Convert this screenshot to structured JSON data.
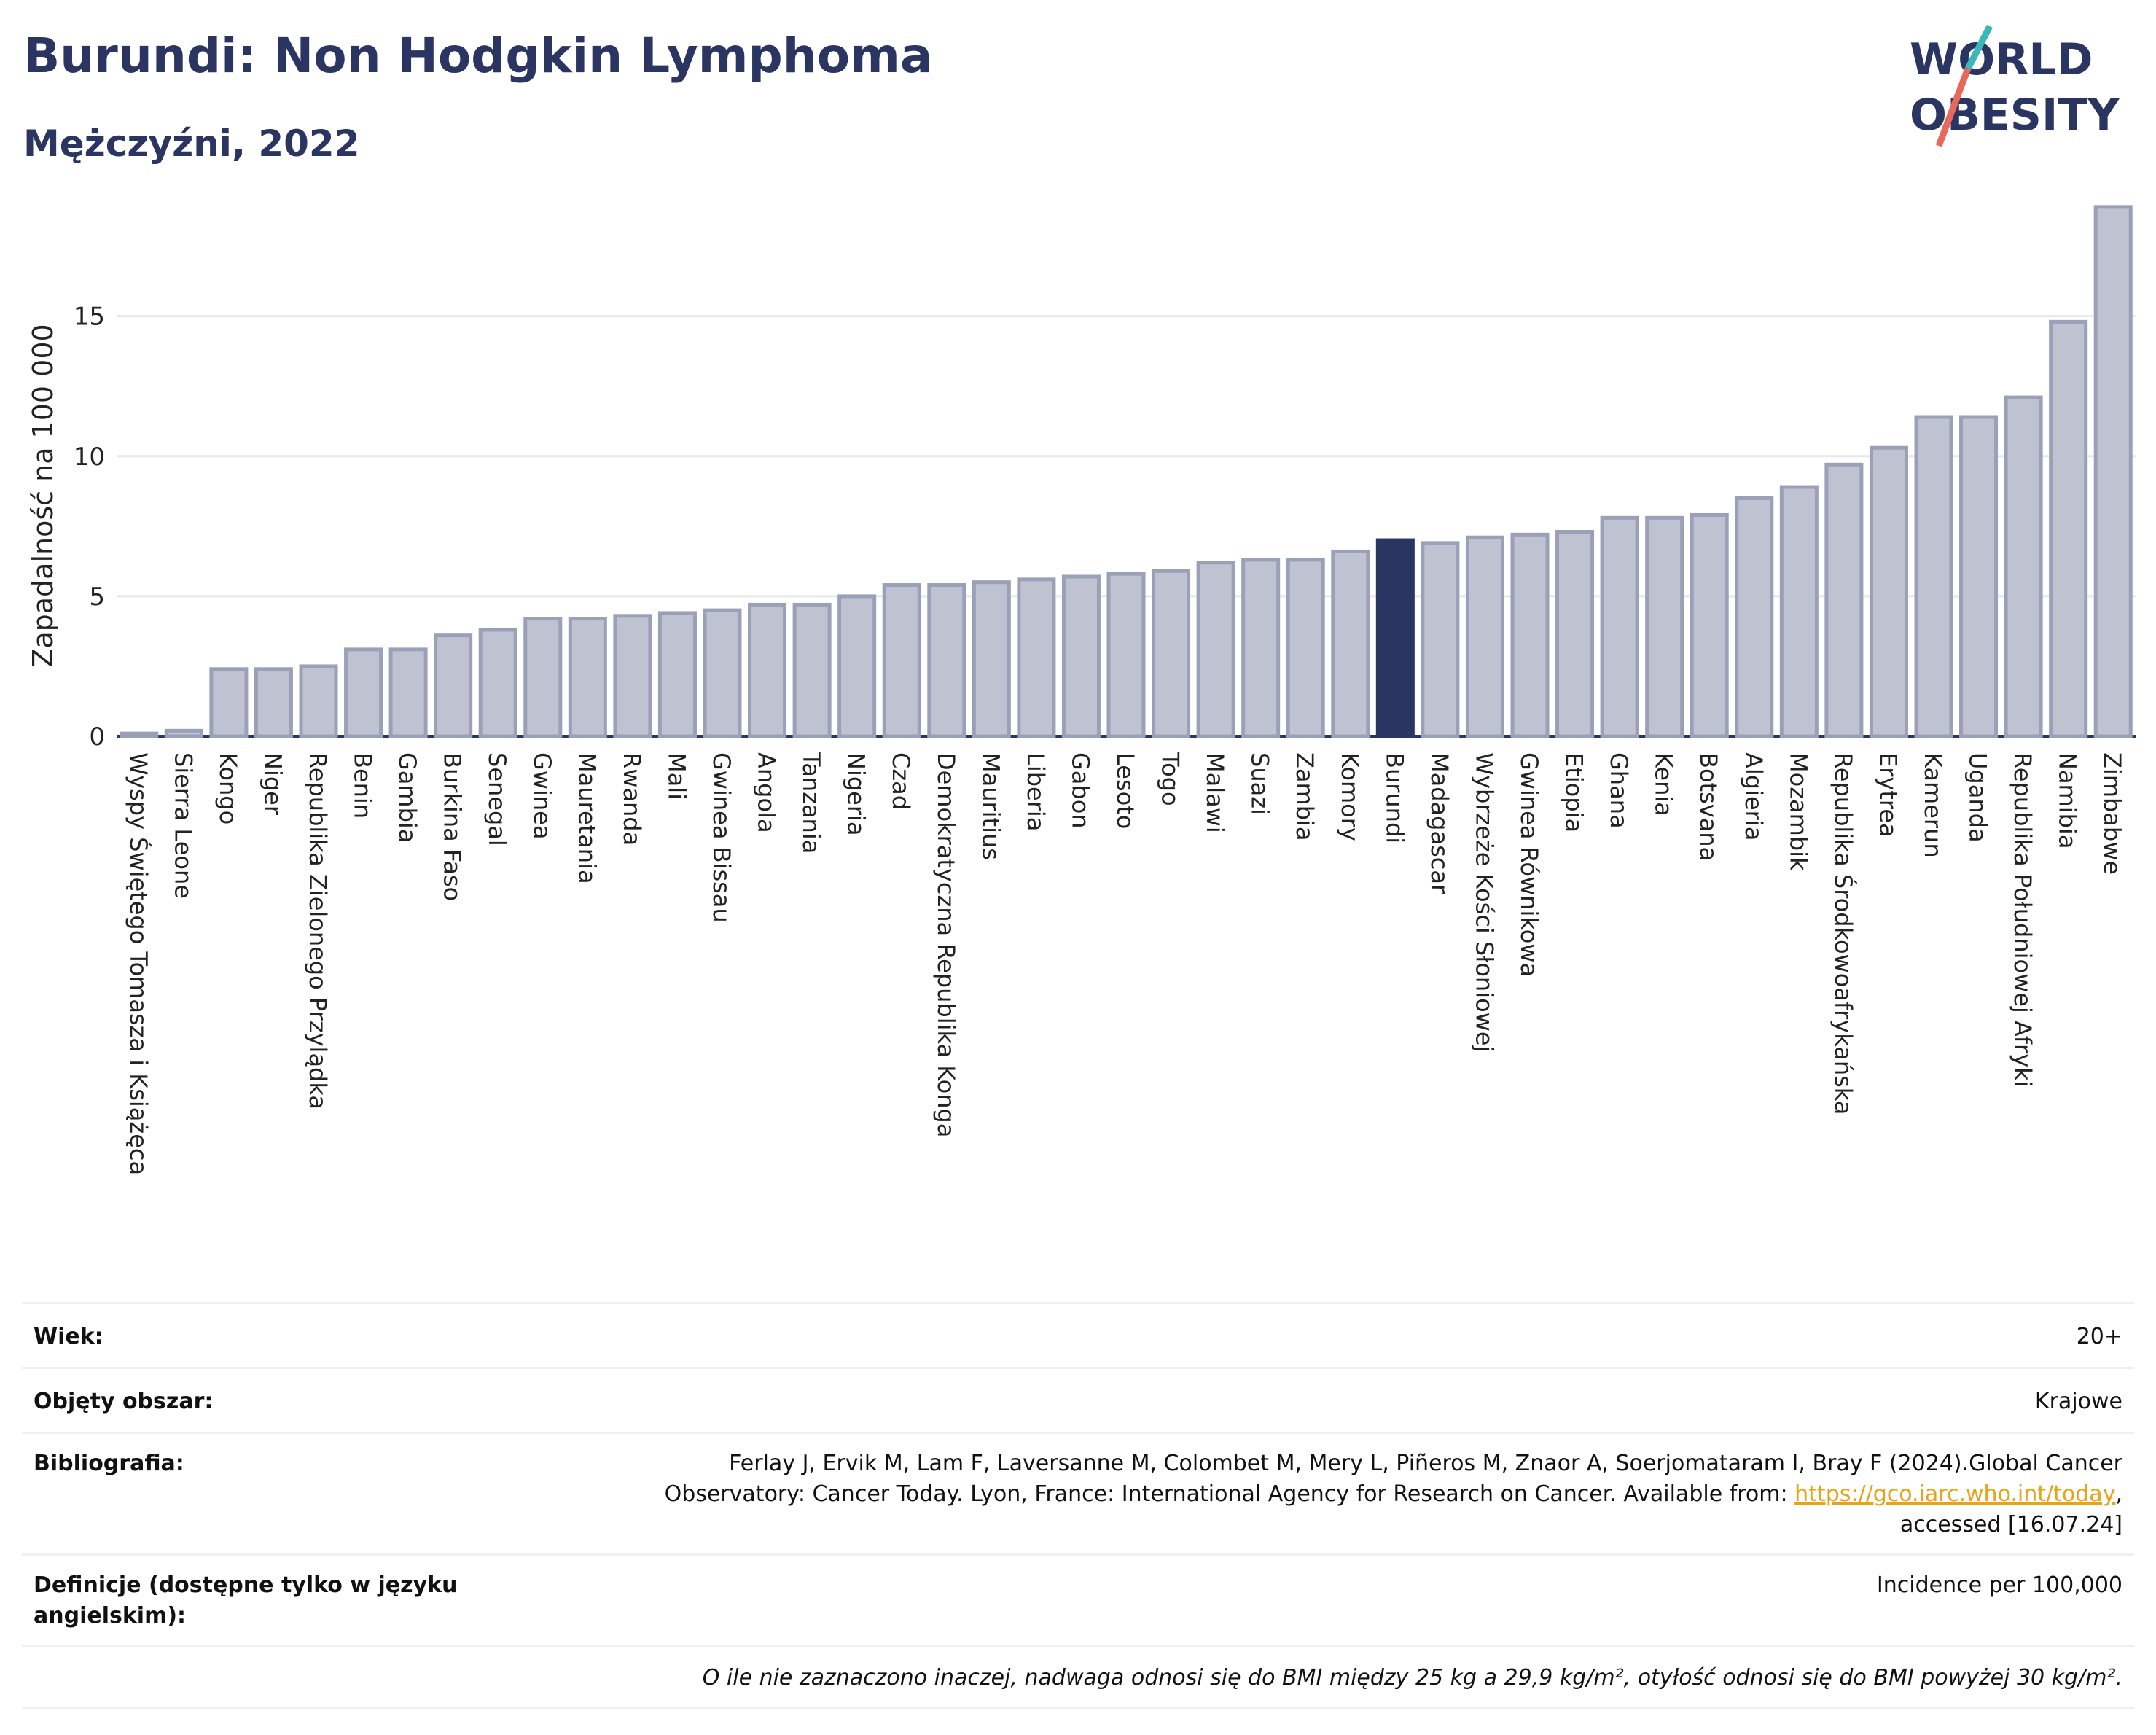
{
  "header": {
    "title": "Burundi: Non Hodgkin Lymphoma",
    "subtitle": "Mężczyźni, 2022"
  },
  "logo": {
    "line1": "WORLD",
    "line2": "OBESITY"
  },
  "colors": {
    "bar": "#bfc3d1",
    "bar_edge": "#9aa0b8",
    "highlight": "#2b3562",
    "grid": "#e6e8ee",
    "text": "#2b3562",
    "link": "#e8a317",
    "logo_teal": "#3ab7b9",
    "logo_red": "#e8685c"
  },
  "chart_data": {
    "type": "bar",
    "title": "",
    "ylabel": "Zapadalność na 100 000",
    "ylim": [
      0,
      19
    ],
    "yticks": [
      0,
      5,
      10,
      15
    ],
    "grid": true,
    "highlight": "Burundi",
    "categories": [
      "Wyspy Świętego Tomasza i Książęca",
      "Sierra Leone",
      "Kongo",
      "Niger",
      "Republika Zielonego Przylądka",
      "Benin",
      "Gambia",
      "Burkina Faso",
      "Senegal",
      "Gwinea",
      "Mauretania",
      "Rwanda",
      "Mali",
      "Gwinea Bissau",
      "Angola",
      "Tanzania",
      "Nigeria",
      "Czad",
      "Demokratyczna Republika Konga",
      "Mauritius",
      "Liberia",
      "Gabon",
      "Lesoto",
      "Togo",
      "Malawi",
      "Suazi",
      "Zambia",
      "Komory",
      "Burundi",
      "Madagascar",
      "Wybrzeże Kości Słoniowej",
      "Gwinea Równikowa",
      "Etiopia",
      "Ghana",
      "Kenia",
      "Botsvana",
      "Algieria",
      "Mozambik",
      "Republika Środkowoafrykańska",
      "Erytrea",
      "Kamerun",
      "Uganda",
      "Republika Południowej Afryki",
      "Namibia",
      "Zimbabwe"
    ],
    "values": [
      0.1,
      0.2,
      2.4,
      2.4,
      2.5,
      3.1,
      3.1,
      3.6,
      3.8,
      4.2,
      4.2,
      4.3,
      4.4,
      4.5,
      4.7,
      4.7,
      5.0,
      5.4,
      5.4,
      5.5,
      5.6,
      5.7,
      5.8,
      5.9,
      6.2,
      6.3,
      6.3,
      6.6,
      7.0,
      6.9,
      7.1,
      7.2,
      7.3,
      7.8,
      7.8,
      7.9,
      8.5,
      8.9,
      9.7,
      10.3,
      11.4,
      11.4,
      12.1,
      14.8,
      18.9
    ]
  },
  "info": {
    "age_label": "Wiek:",
    "age_value": "20+",
    "area_label": "Objęty obszar:",
    "area_value": "Krajowe",
    "bib_label": "Bibliografia:",
    "bib_text_1": "Ferlay J, Ervik M, Lam F, Laversanne M, Colombet M, Mery L, Piñeros M, Znaor A, Soerjomataram I, Bray F (2024).Global Cancer",
    "bib_text_2": "Observatory: Cancer Today. Lyon, France: International Agency for Research on Cancer. Available from: ",
    "bib_link": "https://gco.iarc.who.int/today",
    "bib_text_3": ",",
    "bib_text_4": "accessed [16.07.24]",
    "def_label": "Definicje (dostępne tylko w języku angielskim):",
    "def_value": "Incidence per 100,000",
    "note": "O ile nie zaznaczono inaczej, nadwaga odnosi się do BMI między 25 kg a 29,9 kg/m², otyłość odnosi się do BMI powyżej 30 kg/m²."
  }
}
